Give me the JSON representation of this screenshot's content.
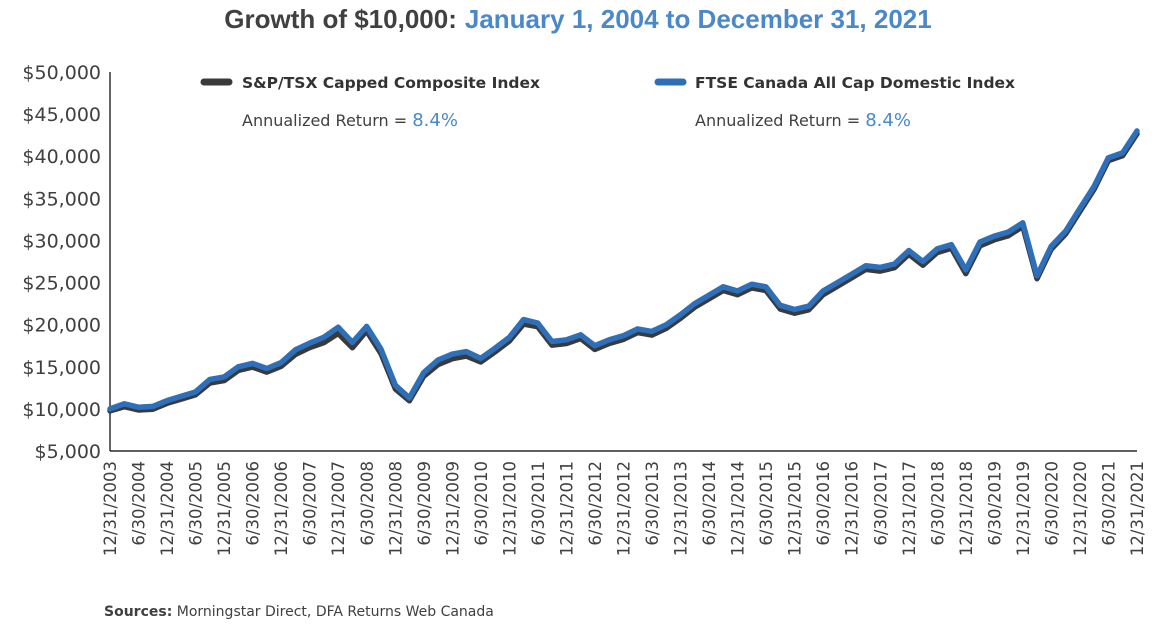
{
  "chart_data": {
    "type": "line",
    "title": "Growth of $10,000:",
    "subtitle": "January 1, 2004 to December 31, 2021",
    "xlabel": "",
    "ylabel": "",
    "ylim": [
      5000,
      50000
    ],
    "y_ticks": [
      5000,
      10000,
      15000,
      20000,
      25000,
      30000,
      35000,
      40000,
      45000,
      50000
    ],
    "y_tick_labels": [
      "$5,000",
      "$10,000",
      "$15,000",
      "$20,000",
      "$25,000",
      "$30,000",
      "$35,000",
      "$40,000",
      "$45,000",
      "$50,000"
    ],
    "x_range": [
      "2003-12-31",
      "2021-12-31"
    ],
    "x_tick_labels": [
      "12/31/2003",
      "6/30/2004",
      "12/31/2004",
      "6/30/2005",
      "12/31/2005",
      "6/30/2006",
      "12/31/2006",
      "6/30/2007",
      "12/31/2007",
      "6/30/2008",
      "12/31/2008",
      "6/30/2009",
      "12/31/2009",
      "6/30/2010",
      "12/31/2010",
      "6/30/2011",
      "12/31/2011",
      "6/30/2012",
      "12/31/2012",
      "6/30/2013",
      "12/31/2013",
      "6/30/2014",
      "12/31/2014",
      "6/30/2015",
      "12/31/2015",
      "6/30/2016",
      "12/31/2016",
      "6/30/2017",
      "12/31/2017",
      "6/30/2018",
      "12/31/2018",
      "6/30/2019",
      "12/31/2019",
      "6/30/2020",
      "12/31/2020",
      "6/30/2021",
      "12/31/2021"
    ],
    "grid": false,
    "legend_placement": "top",
    "x": [
      "2003-12-31",
      "2004-03-31",
      "2004-06-30",
      "2004-09-30",
      "2004-12-31",
      "2005-03-31",
      "2005-06-30",
      "2005-09-30",
      "2005-12-31",
      "2006-03-31",
      "2006-06-30",
      "2006-09-30",
      "2006-12-31",
      "2007-03-31",
      "2007-06-30",
      "2007-09-30",
      "2007-12-31",
      "2008-03-31",
      "2008-06-30",
      "2008-09-30",
      "2008-12-31",
      "2009-03-31",
      "2009-06-30",
      "2009-09-30",
      "2009-12-31",
      "2010-03-31",
      "2010-06-30",
      "2010-09-30",
      "2010-12-31",
      "2011-03-31",
      "2011-06-30",
      "2011-09-30",
      "2011-12-31",
      "2012-03-31",
      "2012-06-30",
      "2012-09-30",
      "2012-12-31",
      "2013-03-31",
      "2013-06-30",
      "2013-09-30",
      "2013-12-31",
      "2014-03-31",
      "2014-06-30",
      "2014-09-30",
      "2014-12-31",
      "2015-03-31",
      "2015-06-30",
      "2015-09-30",
      "2015-12-31",
      "2016-03-31",
      "2016-06-30",
      "2016-09-30",
      "2016-12-31",
      "2017-03-31",
      "2017-06-30",
      "2017-09-30",
      "2017-12-31",
      "2018-03-31",
      "2018-06-30",
      "2018-09-30",
      "2018-12-31",
      "2019-03-31",
      "2019-06-30",
      "2019-09-30",
      "2019-12-31",
      "2020-03-31",
      "2020-06-30",
      "2020-09-30",
      "2020-12-31",
      "2021-03-31",
      "2021-06-30",
      "2021-09-30",
      "2021-12-31"
    ],
    "series": [
      {
        "name": "S&P/TSX Capped Composite Index",
        "color": "#3a3a3a",
        "annualized_return": "8.4%",
        "values": [
          10000,
          10500,
          10100,
          10200,
          10900,
          11400,
          11900,
          13300,
          13600,
          14800,
          15200,
          14600,
          15300,
          16700,
          17500,
          18100,
          19200,
          17500,
          19500,
          16800,
          12600,
          11200,
          14100,
          15500,
          16200,
          16500,
          15800,
          17000,
          18300,
          20300,
          20000,
          17800,
          18000,
          18600,
          17300,
          18000,
          18500,
          19300,
          19000,
          19800,
          21000,
          22300,
          23300,
          24300,
          23800,
          24600,
          24300,
          22100,
          21600,
          22000,
          23800,
          24800,
          25800,
          26800,
          26600,
          27000,
          28600,
          27300,
          28800,
          29300,
          26300,
          29600,
          30300,
          30800,
          31900,
          25700,
          29200,
          31000,
          33700,
          36300,
          39700,
          40300,
          42900
        ]
      },
      {
        "name": "FTSE Canada All Cap Domestic Index",
        "color": "#2e6fba",
        "annualized_return": "8.4%",
        "values": [
          10000,
          10600,
          10200,
          10300,
          11000,
          11500,
          12000,
          13500,
          13800,
          15000,
          15400,
          14800,
          15500,
          17000,
          17800,
          18500,
          19700,
          17900,
          19800,
          17100,
          12800,
          11300,
          14300,
          15800,
          16500,
          16800,
          16000,
          17200,
          18500,
          20600,
          20200,
          18000,
          18200,
          18800,
          17500,
          18200,
          18700,
          19500,
          19200,
          20000,
          21200,
          22500,
          23500,
          24500,
          24000,
          24800,
          24500,
          22300,
          21800,
          22200,
          24000,
          25000,
          26000,
          27000,
          26800,
          27200,
          28800,
          27500,
          29000,
          29500,
          26500,
          29800,
          30500,
          31000,
          32100,
          25800,
          29300,
          31100,
          33800,
          36400,
          39800,
          40400,
          43000
        ]
      }
    ]
  },
  "legend": {
    "items": [
      {
        "label": "S&P/TSX Capped Composite Index",
        "annualized_label": "Annualized Return = ",
        "annualized_value": "8.4%"
      },
      {
        "label": "FTSE Canada All Cap Domestic Index",
        "annualized_label": "Annualized Return = ",
        "annualized_value": "8.4%"
      }
    ]
  },
  "source": {
    "label": "Sources:",
    "text": " Morningstar Direct, DFA Returns Web Canada"
  },
  "colors": {
    "title_dark": "#404040",
    "accent_blue": "#4a88c9",
    "tsx_line": "#3a3a3a",
    "ftse_line": "#2e6fba",
    "axis": "#000000"
  }
}
